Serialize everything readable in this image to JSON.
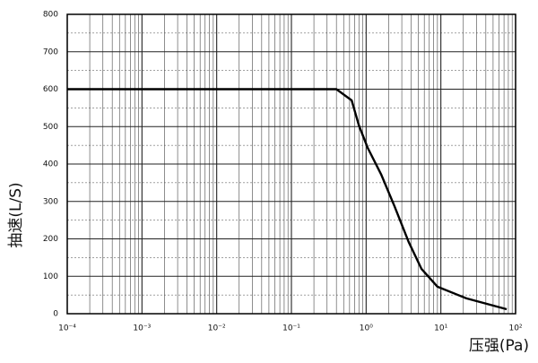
{
  "chart_data": {
    "type": "line",
    "x_label": "压强(Pa)",
    "y_label": "抽速(L/S)",
    "x_log": true,
    "grid": true,
    "minor_grid": true,
    "color": "#000000",
    "xlim": [
      0.0001,
      100
    ],
    "ylim": [
      0,
      800
    ],
    "xticks": [
      {
        "value": 0.0001,
        "label": "10⁻⁴"
      },
      {
        "value": 0.001,
        "label": "10⁻³"
      },
      {
        "value": 0.01,
        "label": "10⁻²"
      },
      {
        "value": 0.1,
        "label": "10⁻¹"
      },
      {
        "value": 1,
        "label": "10⁰"
      },
      {
        "value": 10,
        "label": "10¹"
      },
      {
        "value": 100,
        "label": "10²"
      }
    ],
    "yticks": [
      0,
      100,
      200,
      300,
      400,
      500,
      600,
      700,
      800
    ],
    "x": [
      0.0001,
      0.4,
      0.64,
      0.8,
      1.05,
      1.6,
      2.4,
      3.7,
      5.5,
      9,
      22,
      76
    ],
    "values": [
      600,
      600,
      570,
      503,
      443,
      371,
      287,
      192,
      120,
      72,
      41,
      12
    ]
  }
}
